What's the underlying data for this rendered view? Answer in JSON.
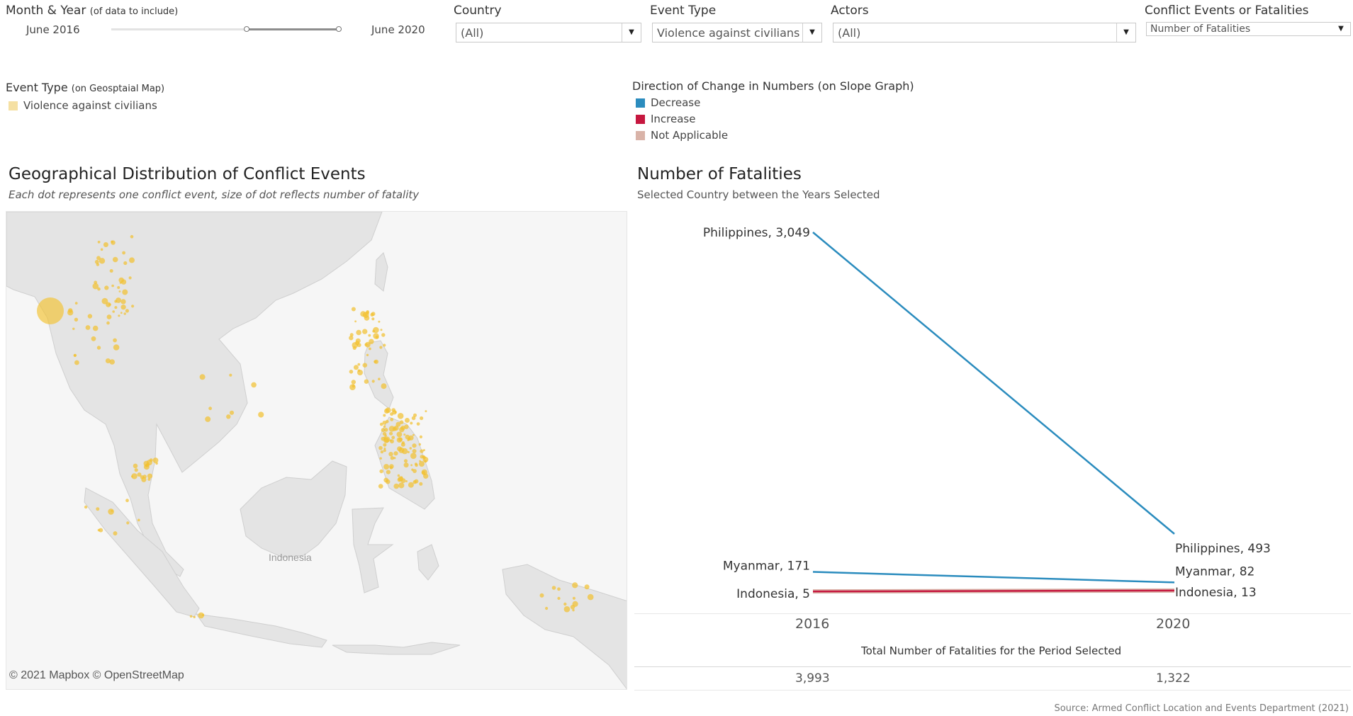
{
  "filters": {
    "date_range": {
      "title": "Month & Year",
      "title_note": "(of data to include)",
      "start_label": "June 2016",
      "end_label": "June 2020"
    },
    "country": {
      "title": "Country",
      "value": "(All)"
    },
    "event_type": {
      "title": "Event Type",
      "value": "Violence against civilians"
    },
    "actors": {
      "title": "Actors",
      "value": "(All)"
    },
    "measure": {
      "title": "Conflict Events or Fatalities",
      "value": "Number of Fatalities"
    }
  },
  "legends": {
    "event_type": {
      "title": "Event Type",
      "title_note": "(on Geosptaial Map)",
      "items": [
        {
          "label": "Violence against civilians",
          "color": "#f5e0a3"
        }
      ]
    },
    "direction": {
      "title": "Direction of Change in Numbers (on Slope Graph)",
      "items": [
        {
          "label": "Decrease",
          "color": "#2b8cbe"
        },
        {
          "label": "Increase",
          "color": "#c6173f"
        },
        {
          "label": "Not Applicable",
          "color": "#d9b3a8"
        }
      ]
    }
  },
  "map_panel": {
    "title": "Geographical Distribution of Conflict Events",
    "subtitle": "Each dot represents one conflict event, size of dot reflects number of fatality",
    "map_label": "Indonesia",
    "credit": "© 2021 Mapbox © OpenStreetMap",
    "dot_color": "#f2c12e"
  },
  "slope_panel": {
    "title": "Number of Fatalities",
    "subtitle": "Selected Country between the Years Selected",
    "totals_title": "Total Number of Fatalities for the Period Selected",
    "chart_data": {
      "type": "line",
      "x": [
        "2016",
        "2020"
      ],
      "series": [
        {
          "name": "Philippines",
          "values": [
            3049,
            493
          ],
          "direction": "Decrease",
          "color": "#2b8cbe"
        },
        {
          "name": "Myanmar",
          "values": [
            171,
            82
          ],
          "direction": "Decrease",
          "color": "#2b8cbe"
        },
        {
          "name": "Indonesia",
          "values": [
            5,
            13
          ],
          "direction": "Increase",
          "color": "#c6173f"
        }
      ],
      "start_labels": [
        "Philippines, 3,049",
        "Myanmar, 171",
        "Indonesia, 5"
      ],
      "end_labels": [
        "Philippines, 493",
        "Myanmar, 82",
        "Indonesia, 13"
      ],
      "ylim": [
        0,
        3049
      ],
      "totals": [
        "3,993",
        "1,322"
      ]
    }
  },
  "footer": {
    "source": "Source: Armed Conflict Location and Events Department (2021)"
  }
}
